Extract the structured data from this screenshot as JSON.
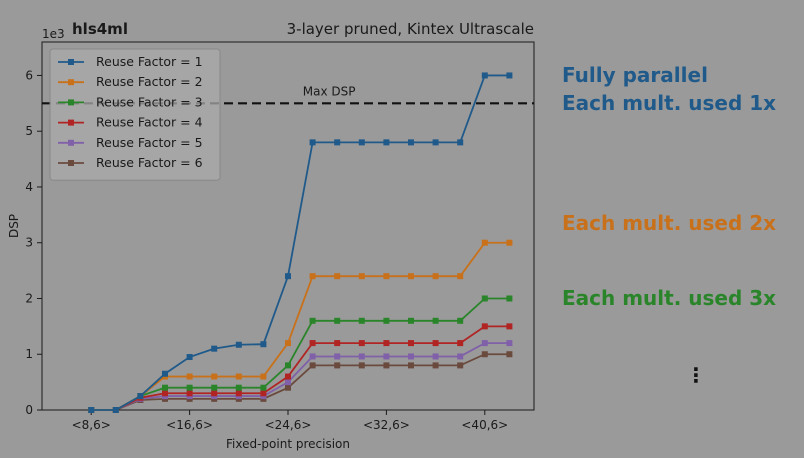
{
  "chart_data": {
    "type": "line",
    "title_left": "hls4ml",
    "title_right": "3-layer pruned, Kintex Ultrascale",
    "xlabel": "Fixed-point precision",
    "ylabel": "DSP",
    "y_multiplier_label": "1e3",
    "x_range": [
      6,
      26
    ],
    "ylim": [
      0,
      6.6
    ],
    "x_ticks": [
      {
        "x": 8,
        "label": "<8,6>"
      },
      {
        "x": 12,
        "label": "<16,6>"
      },
      {
        "x": 16,
        "label": "<24,6>"
      },
      {
        "x": 20,
        "label": "<32,6>"
      },
      {
        "x": 24,
        "label": "<40,6>"
      }
    ],
    "y_ticks": [
      {
        "y": 0,
        "label": "0"
      },
      {
        "y": 1,
        "label": "1"
      },
      {
        "y": 2,
        "label": "2"
      },
      {
        "y": 3,
        "label": "3"
      },
      {
        "y": 4,
        "label": "4"
      },
      {
        "y": 5,
        "label": "5"
      },
      {
        "y": 6,
        "label": "6"
      }
    ],
    "x": [
      8,
      9,
      10,
      11,
      12,
      13,
      14,
      15,
      16,
      17,
      18,
      19,
      20,
      21,
      22,
      23,
      24,
      25
    ],
    "series": [
      {
        "name": "Reuse Factor = 1",
        "color": "#1f5a8a",
        "values": [
          0,
          0,
          0.25,
          0.65,
          0.95,
          1.1,
          1.17,
          1.18,
          2.4,
          4.8,
          4.8,
          4.8,
          4.8,
          4.8,
          4.8,
          4.8,
          6.0,
          6.0
        ]
      },
      {
        "name": "Reuse Factor = 2",
        "color": "#c8711a",
        "values": [
          0,
          0,
          0.25,
          0.6,
          0.6,
          0.6,
          0.6,
          0.6,
          1.2,
          2.4,
          2.4,
          2.4,
          2.4,
          2.4,
          2.4,
          2.4,
          3.0,
          3.0
        ]
      },
      {
        "name": "Reuse Factor = 3",
        "color": "#2a852a",
        "values": [
          0,
          0,
          0.25,
          0.4,
          0.4,
          0.4,
          0.4,
          0.4,
          0.8,
          1.6,
          1.6,
          1.6,
          1.6,
          1.6,
          1.6,
          1.6,
          2.0,
          2.0
        ]
      },
      {
        "name": "Reuse Factor = 4",
        "color": "#b02424",
        "values": [
          0,
          0,
          0.22,
          0.3,
          0.3,
          0.3,
          0.3,
          0.3,
          0.6,
          1.2,
          1.2,
          1.2,
          1.2,
          1.2,
          1.2,
          1.2,
          1.5,
          1.5
        ]
      },
      {
        "name": "Reuse Factor = 5",
        "color": "#8060a8",
        "values": [
          0,
          0,
          0.2,
          0.25,
          0.25,
          0.25,
          0.25,
          0.25,
          0.5,
          0.96,
          0.96,
          0.96,
          0.96,
          0.96,
          0.96,
          0.96,
          1.2,
          1.2
        ]
      },
      {
        "name": "Reuse Factor = 6",
        "color": "#6b4a3e",
        "values": [
          0,
          0,
          0.18,
          0.2,
          0.2,
          0.2,
          0.2,
          0.2,
          0.4,
          0.8,
          0.8,
          0.8,
          0.8,
          0.8,
          0.8,
          0.8,
          1.0,
          1.0
        ]
      }
    ],
    "reference_line": {
      "y": 5.5,
      "label": "Max DSP"
    },
    "legend_position": "upper-left",
    "grid": false
  },
  "annotations": [
    {
      "lines": [
        "Fully parallel",
        "Each mult. used 1x"
      ],
      "color": "#1f5a8a"
    },
    {
      "lines": [
        "Each mult. used 2x"
      ],
      "color": "#c8711a"
    },
    {
      "lines": [
        "Each mult. used 3x"
      ],
      "color": "#2a852a"
    },
    {
      "lines": [
        "⋮"
      ],
      "color": "#111111"
    }
  ]
}
